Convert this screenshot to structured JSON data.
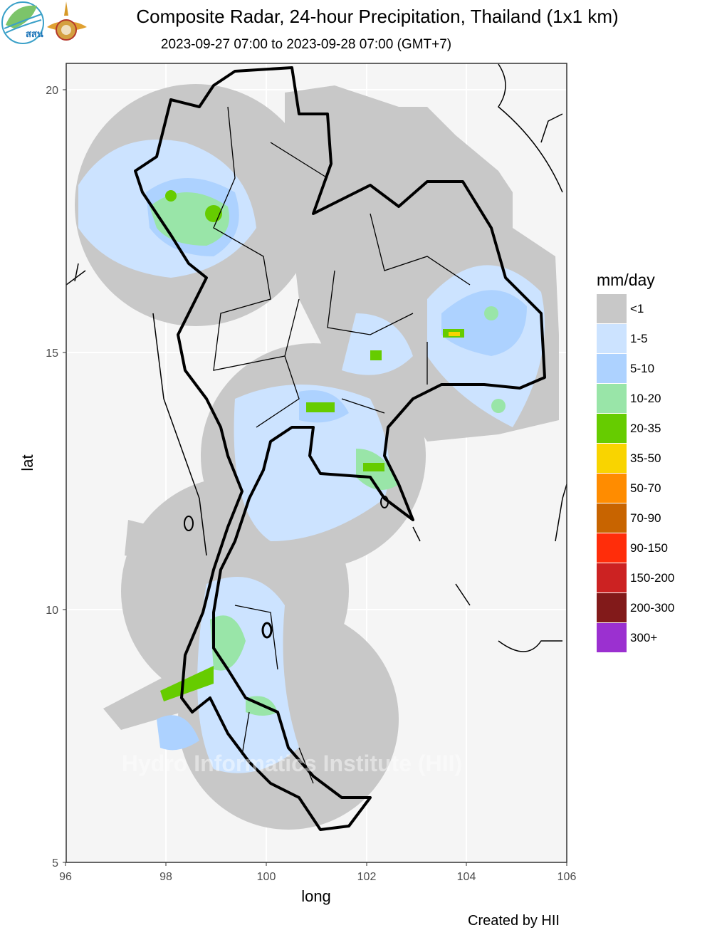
{
  "title": "Composite Radar, 24-hour Precipitation, Thailand (1x1 km)",
  "subtitle": "2023-09-27 07:00 to 2023-09-28 07:00 (GMT+7)",
  "logos": {
    "left_logo_text": "สสน",
    "right_logo": "royal-emblem"
  },
  "map": {
    "xlabel": "long",
    "ylabel": "lat",
    "x_ticks": [
      "96",
      "98",
      "100",
      "102",
      "104",
      "106"
    ],
    "y_ticks": [
      "20",
      "15",
      "10",
      "5"
    ],
    "xlim": [
      96,
      106
    ],
    "ylim": [
      5,
      20.5
    ],
    "watermark": "Hydro Informatics Institute (HII)",
    "colors": {
      "panel_background": "#f5f5f5",
      "grid": "#ffffff",
      "border": "#000000"
    }
  },
  "legend": {
    "title": "mm/day",
    "items": [
      {
        "label": "<1",
        "color": "#c8c8c8"
      },
      {
        "label": "1-5",
        "color": "#cce3ff"
      },
      {
        "label": "5-10",
        "color": "#add2ff"
      },
      {
        "label": "10-20",
        "color": "#99e5a8"
      },
      {
        "label": "20-35",
        "color": "#66cc00"
      },
      {
        "label": "35-50",
        "color": "#f9d400"
      },
      {
        "label": "50-70",
        "color": "#ff8c00"
      },
      {
        "label": "70-90",
        "color": "#c86400"
      },
      {
        "label": "90-150",
        "color": "#ff2d0a"
      },
      {
        "label": "150-200",
        "color": "#cc2222"
      },
      {
        "label": "200-300",
        "color": "#821a1a"
      },
      {
        "label": "300+",
        "color": "#9b30d0"
      }
    ]
  },
  "credit": "Created by HII"
}
